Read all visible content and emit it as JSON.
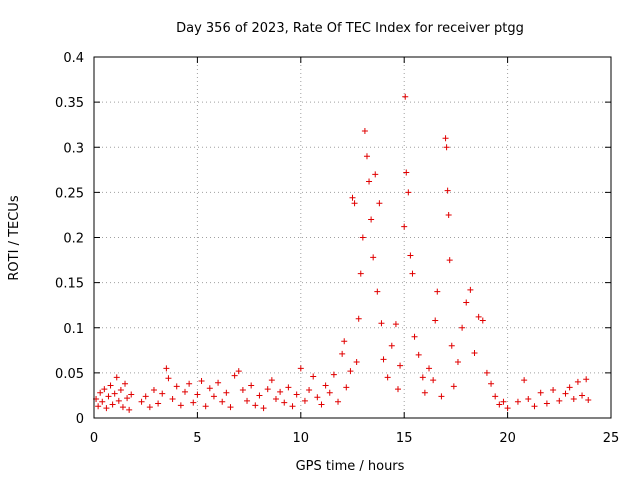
{
  "chart_data": {
    "type": "scatter",
    "title": "Day 356 of 2023, Rate Of TEC Index for receiver ptgg",
    "xlabel": "GPS time / hours",
    "ylabel": "ROTI / TECUs",
    "xlim": [
      0,
      25
    ],
    "ylim": [
      0,
      0.4
    ],
    "xticks": [
      0,
      5,
      10,
      15,
      20,
      25
    ],
    "yticks": [
      0,
      0.05,
      0.1,
      0.15,
      0.2,
      0.25,
      0.3,
      0.35,
      0.4
    ],
    "xtick_labels": [
      "0",
      "5",
      "10",
      "15",
      "20",
      "25"
    ],
    "ytick_labels": [
      "0",
      "0.05",
      "0.1",
      "0.15",
      "0.2",
      "0.25",
      "0.3",
      "0.35",
      "0.4"
    ],
    "grid": true,
    "marker": "+",
    "color": "#e00000",
    "series": [
      {
        "name": "ROTI",
        "points": [
          [
            0.1,
            0.021
          ],
          [
            0.2,
            0.013
          ],
          [
            0.3,
            0.028
          ],
          [
            0.4,
            0.018
          ],
          [
            0.5,
            0.032
          ],
          [
            0.6,
            0.011
          ],
          [
            0.7,
            0.024
          ],
          [
            0.8,
            0.036
          ],
          [
            0.9,
            0.015
          ],
          [
            1.0,
            0.027
          ],
          [
            1.1,
            0.045
          ],
          [
            1.2,
            0.019
          ],
          [
            1.3,
            0.031
          ],
          [
            1.4,
            0.012
          ],
          [
            1.5,
            0.038
          ],
          [
            1.6,
            0.022
          ],
          [
            1.7,
            0.009
          ],
          [
            1.8,
            0.026
          ],
          [
            2.3,
            0.018
          ],
          [
            2.5,
            0.024
          ],
          [
            2.7,
            0.012
          ],
          [
            2.9,
            0.031
          ],
          [
            3.1,
            0.016
          ],
          [
            3.3,
            0.027
          ],
          [
            3.5,
            0.055
          ],
          [
            3.6,
            0.044
          ],
          [
            3.8,
            0.021
          ],
          [
            4.0,
            0.035
          ],
          [
            4.2,
            0.014
          ],
          [
            4.4,
            0.029
          ],
          [
            4.6,
            0.038
          ],
          [
            4.8,
            0.017
          ],
          [
            5.0,
            0.026
          ],
          [
            5.2,
            0.041
          ],
          [
            5.4,
            0.013
          ],
          [
            5.6,
            0.033
          ],
          [
            5.8,
            0.024
          ],
          [
            6.0,
            0.039
          ],
          [
            6.2,
            0.018
          ],
          [
            6.4,
            0.028
          ],
          [
            6.6,
            0.012
          ],
          [
            6.8,
            0.047
          ],
          [
            7.0,
            0.052
          ],
          [
            7.2,
            0.031
          ],
          [
            7.4,
            0.019
          ],
          [
            7.6,
            0.036
          ],
          [
            7.8,
            0.014
          ],
          [
            8.0,
            0.025
          ],
          [
            8.2,
            0.011
          ],
          [
            8.4,
            0.032
          ],
          [
            8.6,
            0.042
          ],
          [
            8.8,
            0.021
          ],
          [
            9.0,
            0.029
          ],
          [
            9.2,
            0.017
          ],
          [
            9.4,
            0.034
          ],
          [
            9.6,
            0.013
          ],
          [
            9.8,
            0.026
          ],
          [
            10.0,
            0.055
          ],
          [
            10.2,
            0.019
          ],
          [
            10.4,
            0.031
          ],
          [
            10.6,
            0.046
          ],
          [
            10.8,
            0.023
          ],
          [
            11.0,
            0.015
          ],
          [
            11.2,
            0.036
          ],
          [
            11.4,
            0.028
          ],
          [
            11.6,
            0.048
          ],
          [
            11.8,
            0.018
          ],
          [
            12.0,
            0.071
          ],
          [
            12.1,
            0.085
          ],
          [
            12.2,
            0.034
          ],
          [
            12.4,
            0.052
          ],
          [
            12.5,
            0.244
          ],
          [
            12.6,
            0.238
          ],
          [
            12.7,
            0.062
          ],
          [
            12.8,
            0.11
          ],
          [
            12.9,
            0.16
          ],
          [
            13.0,
            0.2
          ],
          [
            13.1,
            0.318
          ],
          [
            13.2,
            0.29
          ],
          [
            13.3,
            0.262
          ],
          [
            13.4,
            0.22
          ],
          [
            13.5,
            0.178
          ],
          [
            13.6,
            0.27
          ],
          [
            13.7,
            0.14
          ],
          [
            13.8,
            0.238
          ],
          [
            13.9,
            0.105
          ],
          [
            14.0,
            0.065
          ],
          [
            14.2,
            0.045
          ],
          [
            14.4,
            0.08
          ],
          [
            14.6,
            0.104
          ],
          [
            14.7,
            0.032
          ],
          [
            14.8,
            0.058
          ],
          [
            15.0,
            0.212
          ],
          [
            15.05,
            0.356
          ],
          [
            15.1,
            0.272
          ],
          [
            15.2,
            0.25
          ],
          [
            15.3,
            0.18
          ],
          [
            15.4,
            0.16
          ],
          [
            15.5,
            0.09
          ],
          [
            15.7,
            0.07
          ],
          [
            15.9,
            0.045
          ],
          [
            16.0,
            0.028
          ],
          [
            16.2,
            0.055
          ],
          [
            16.4,
            0.042
          ],
          [
            16.5,
            0.108
          ],
          [
            16.6,
            0.14
          ],
          [
            16.8,
            0.024
          ],
          [
            17.0,
            0.31
          ],
          [
            17.05,
            0.3
          ],
          [
            17.1,
            0.252
          ],
          [
            17.15,
            0.225
          ],
          [
            17.2,
            0.175
          ],
          [
            17.3,
            0.08
          ],
          [
            17.4,
            0.035
          ],
          [
            17.6,
            0.062
          ],
          [
            17.8,
            0.1
          ],
          [
            18.0,
            0.128
          ],
          [
            18.2,
            0.142
          ],
          [
            18.4,
            0.072
          ],
          [
            18.6,
            0.112
          ],
          [
            18.8,
            0.108
          ],
          [
            19.0,
            0.05
          ],
          [
            19.2,
            0.038
          ],
          [
            19.4,
            0.024
          ],
          [
            19.6,
            0.015
          ],
          [
            19.8,
            0.018
          ],
          [
            20.0,
            0.011
          ],
          [
            20.5,
            0.018
          ],
          [
            20.8,
            0.042
          ],
          [
            21.0,
            0.021
          ],
          [
            21.3,
            0.013
          ],
          [
            21.6,
            0.028
          ],
          [
            21.9,
            0.016
          ],
          [
            22.2,
            0.031
          ],
          [
            22.5,
            0.019
          ],
          [
            22.8,
            0.027
          ],
          [
            23.0,
            0.034
          ],
          [
            23.2,
            0.021
          ],
          [
            23.4,
            0.04
          ],
          [
            23.6,
            0.025
          ],
          [
            23.8,
            0.043
          ],
          [
            23.9,
            0.02
          ]
        ]
      }
    ]
  }
}
